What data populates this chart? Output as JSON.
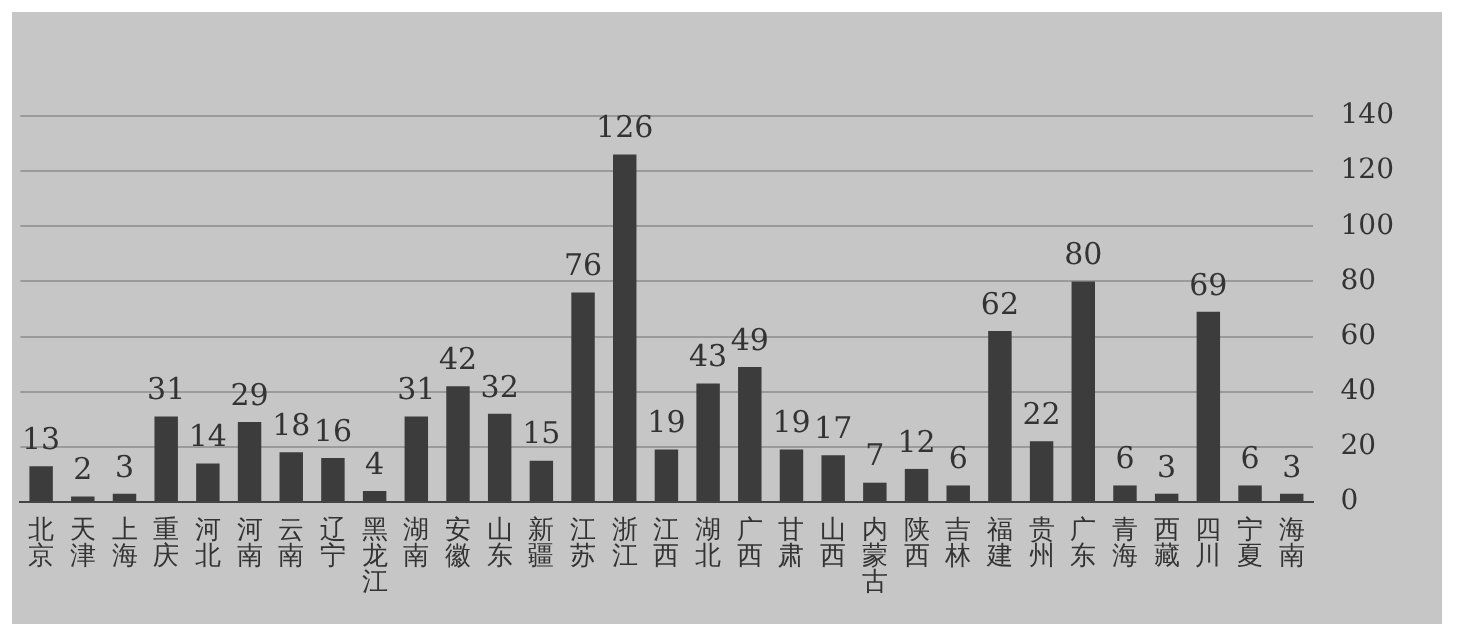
{
  "chart_data": {
    "type": "bar",
    "categories": [
      "北京",
      "天津",
      "上海",
      "重庆",
      "河北",
      "河南",
      "云南",
      "辽宁",
      "黑龙江",
      "湖南",
      "安徽",
      "山东",
      "新疆",
      "江苏",
      "浙江",
      "江西",
      "湖北",
      "广西",
      "甘肃",
      "山西",
      "内蒙古",
      "陕西",
      "吉林",
      "福建",
      "贵州",
      "广东",
      "青海",
      "西藏",
      "四川",
      "宁夏",
      "海南"
    ],
    "values": [
      13,
      2,
      3,
      31,
      14,
      29,
      18,
      16,
      4,
      31,
      42,
      32,
      15,
      76,
      126,
      19,
      43,
      49,
      19,
      17,
      7,
      12,
      6,
      62,
      22,
      80,
      6,
      3,
      69,
      6,
      3
    ],
    "color": "#3c3c3c",
    "ylim": [
      0,
      140
    ],
    "yticks": [
      0,
      20,
      40,
      60,
      80,
      100,
      120,
      140
    ],
    "grid": "y",
    "data_labels": true,
    "legend": false
  }
}
